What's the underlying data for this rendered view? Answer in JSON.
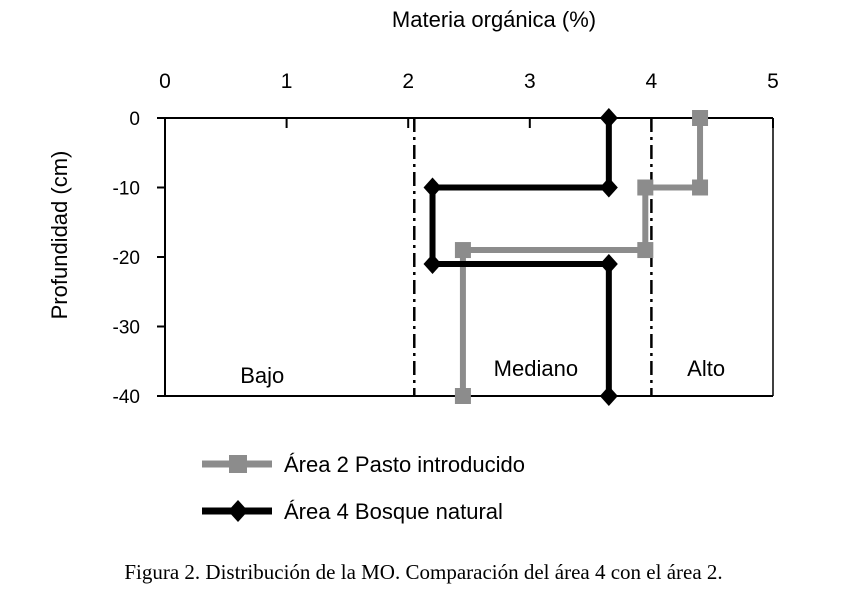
{
  "caption": "Figura 2. Distribución de la MO. Comparación del  área 4 con el área 2.",
  "chart_data": {
    "type": "line",
    "title": "",
    "xlabel": "Materia orgánica (%)",
    "ylabel": "Profundidad (cm)",
    "xlim": [
      0,
      5
    ],
    "ylim": [
      -40,
      0
    ],
    "x_ticks": [
      0,
      1,
      2,
      3,
      4,
      5
    ],
    "y_ticks": [
      0,
      -10,
      -20,
      -30,
      -40
    ],
    "x_axis_position": "top",
    "grid": false,
    "legend_position": "bottom",
    "series": [
      {
        "name": "Área 2 Pasto introducido",
        "color": "#8c8c8c",
        "marker": "square",
        "points": [
          {
            "x": 4.4,
            "y": 0
          },
          {
            "x": 4.4,
            "y": -10
          },
          {
            "x": 3.95,
            "y": -10
          },
          {
            "x": 3.95,
            "y": -19
          },
          {
            "x": 2.45,
            "y": -19
          },
          {
            "x": 2.45,
            "y": -40
          }
        ]
      },
      {
        "name": "Área 4 Bosque natural",
        "color": "#000000",
        "marker": "diamond",
        "points": [
          {
            "x": 3.65,
            "y": 0
          },
          {
            "x": 3.65,
            "y": -10
          },
          {
            "x": 2.2,
            "y": -10
          },
          {
            "x": 2.2,
            "y": -21
          },
          {
            "x": 3.65,
            "y": -21
          },
          {
            "x": 3.65,
            "y": -40
          }
        ]
      }
    ],
    "reference_lines": [
      {
        "x": 2.05,
        "style": "dash-dot"
      },
      {
        "x": 4.0,
        "style": "dash-dot"
      }
    ],
    "annotations": [
      {
        "text": "Bajo",
        "x": 0.8,
        "y": -37
      },
      {
        "text": "Mediano",
        "x": 3.05,
        "y": -36
      },
      {
        "text": "Alto",
        "x": 4.45,
        "y": -36
      }
    ]
  }
}
